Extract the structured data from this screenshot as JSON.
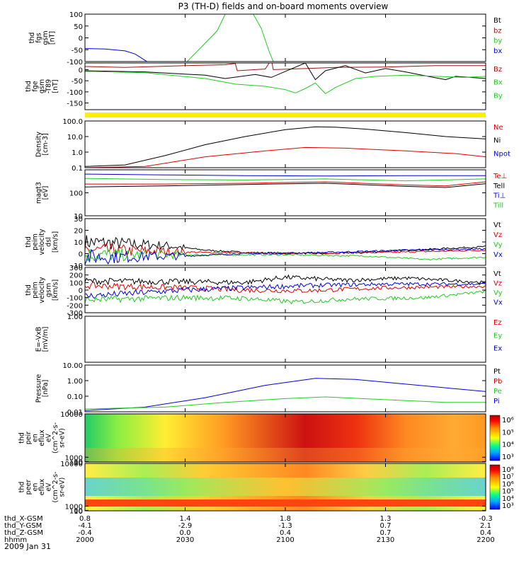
{
  "title": "P3 (TH-D) fields and on-board moments overview",
  "date_label": "2009 Jan 31",
  "colors": {
    "black": "#000000",
    "red": "#e00000",
    "darkred": "#a01010",
    "green": "#22cc22",
    "blue": "#0000dd",
    "yellow": "#ffee00",
    "axis": "#000000"
  },
  "chart_data": [
    {
      "id": "fgs",
      "type": "line",
      "ylabel": [
        "thd",
        "fgs",
        "gsm",
        "[nT]"
      ],
      "ylim": [
        -100,
        100
      ],
      "yticks": [
        "100",
        "50",
        "0",
        "-50",
        "-100"
      ],
      "ytick_values": [
        100,
        50,
        0,
        -50,
        -100
      ],
      "legend": [
        "Bt",
        "bz",
        "by",
        "bx"
      ],
      "series": [
        {
          "color": "blue",
          "points": [
            [
              2000,
              -45
            ],
            [
              2010,
              -47
            ],
            [
              2020,
              -55
            ],
            [
              2025,
              -68
            ],
            [
              2030,
              -95
            ],
            [
              2031,
              -100
            ]
          ]
        },
        {
          "color": "green",
          "points": [
            [
              2051,
              -100
            ],
            [
              2058,
              -40
            ],
            [
              2066,
              30
            ],
            [
              2070,
              100
            ]
          ]
        },
        {
          "color": "green",
          "points": [
            [
              2084,
              100
            ],
            [
              2088,
              40
            ],
            [
              2092,
              -60
            ],
            [
              2094,
              -100
            ]
          ]
        }
      ]
    },
    {
      "id": "fge",
      "type": "line",
      "ylabel": [
        "thd",
        "fge",
        "gsm",
        "-T89",
        "[nT]"
      ],
      "ylim": [
        -180,
        30
      ],
      "yticks": [
        "0",
        "-50",
        "-100",
        "-150"
      ],
      "ytick_values": [
        0,
        -50,
        -100,
        -150
      ],
      "legend": [
        "Bz",
        "Bx",
        "By"
      ],
      "series": [
        {
          "color": "darkred",
          "points": [
            [
              2000,
              14
            ],
            [
              2020,
              10
            ],
            [
              2050,
              18
            ],
            [
              2070,
              22
            ],
            [
              2075,
              28
            ],
            [
              2076,
              -5
            ],
            [
              2090,
              3
            ],
            [
              2093,
              45
            ],
            [
              2094,
              0
            ],
            [
              2110,
              5
            ],
            [
              2125,
              10
            ],
            [
              2150,
              12
            ],
            [
              2175,
              18
            ],
            [
              2200,
              18
            ]
          ]
        },
        {
          "color": "black",
          "points": [
            [
              2000,
              -5
            ],
            [
              2030,
              -10
            ],
            [
              2060,
              -25
            ],
            [
              2070,
              -40
            ],
            [
              2085,
              -22
            ],
            [
              2093,
              -35
            ],
            [
              2100,
              -8
            ],
            [
              2110,
              30
            ],
            [
              2115,
              -45
            ],
            [
              2120,
              -5
            ],
            [
              2130,
              18
            ],
            [
              2140,
              -15
            ],
            [
              2150,
              5
            ],
            [
              2160,
              -10
            ],
            [
              2170,
              -28
            ],
            [
              2180,
              -45
            ],
            [
              2185,
              -30
            ],
            [
              2200,
              -40
            ]
          ]
        },
        {
          "color": "green",
          "points": [
            [
              2000,
              -8
            ],
            [
              2030,
              -14
            ],
            [
              2060,
              -40
            ],
            [
              2075,
              -65
            ],
            [
              2090,
              -75
            ],
            [
              2100,
              -90
            ],
            [
              2105,
              -105
            ],
            [
              2110,
              -85
            ],
            [
              2115,
              -60
            ],
            [
              2120,
              -108
            ],
            [
              2125,
              -80
            ],
            [
              2135,
              -40
            ],
            [
              2145,
              -30
            ],
            [
              2160,
              -25
            ],
            [
              2175,
              -30
            ],
            [
              2190,
              -35
            ],
            [
              2200,
              -30
            ]
          ]
        }
      ]
    },
    {
      "id": "flag",
      "type": "band",
      "color": "yellow"
    },
    {
      "id": "density",
      "type": "line",
      "ylog": true,
      "ylabel": [
        "Density",
        "[cm-3]"
      ],
      "ylim": [
        0.1,
        100
      ],
      "yticks": [
        "100.0",
        "10.0",
        "1.0",
        "0.1"
      ],
      "ytick_values": [
        100,
        10,
        1,
        0.1
      ],
      "legend": [
        "Ne",
        "Ni",
        "Npot"
      ],
      "series": [
        {
          "color": "black",
          "points": [
            [
              2000,
              0.12
            ],
            [
              2020,
              0.15
            ],
            [
              2040,
              0.6
            ],
            [
              2060,
              3.0
            ],
            [
              2080,
              10
            ],
            [
              2100,
              28
            ],
            [
              2115,
              42
            ],
            [
              2125,
              40
            ],
            [
              2140,
              30
            ],
            [
              2160,
              18
            ],
            [
              2180,
              10
            ],
            [
              2200,
              7
            ]
          ]
        },
        {
          "color": "red",
          "points": [
            [
              2000,
              0.1
            ],
            [
              2030,
              0.12
            ],
            [
              2060,
              0.5
            ],
            [
              2090,
              1.2
            ],
            [
              2110,
              2.0
            ],
            [
              2130,
              1.8
            ],
            [
              2160,
              1.2
            ],
            [
              2185,
              0.8
            ],
            [
              2200,
              0.5
            ]
          ]
        }
      ]
    },
    {
      "id": "temp",
      "type": "line",
      "ylog": true,
      "ylabel": [
        "magt3",
        "[eV]"
      ],
      "ylim": [
        10,
        1000
      ],
      "yticks": [
        "100",
        "10"
      ],
      "ytick_values": [
        100,
        10
      ],
      "legend": [
        "Te⊥",
        "Tell",
        "Ti⊥",
        "Till"
      ],
      "series": [
        {
          "color": "blue",
          "points": [
            [
              2000,
              650
            ],
            [
              2040,
              600
            ],
            [
              2080,
              560
            ],
            [
              2120,
              540
            ],
            [
              2160,
              560
            ],
            [
              2200,
              560
            ]
          ]
        },
        {
          "color": "green",
          "points": [
            [
              2000,
              420
            ],
            [
              2040,
              380
            ],
            [
              2080,
              360
            ],
            [
              2120,
              400
            ],
            [
              2160,
              330
            ],
            [
              2200,
              400
            ]
          ]
        },
        {
          "color": "red",
          "points": [
            [
              2000,
              240
            ],
            [
              2040,
              240
            ],
            [
              2080,
              260
            ],
            [
              2120,
              300
            ],
            [
              2160,
              220
            ],
            [
              2180,
              200
            ],
            [
              2200,
              300
            ]
          ]
        },
        {
          "color": "black",
          "points": [
            [
              2000,
              180
            ],
            [
              2040,
              200
            ],
            [
              2080,
              230
            ],
            [
              2120,
              260
            ],
            [
              2160,
              190
            ],
            [
              2180,
              170
            ],
            [
              2200,
              250
            ]
          ]
        }
      ]
    },
    {
      "id": "peim",
      "type": "line",
      "ylabel": [
        "thd",
        "peim",
        "velocity",
        "dsl",
        "[km/s]"
      ],
      "ylim": [
        -10,
        30
      ],
      "yticks": [
        "30",
        "20",
        "10",
        "0",
        "-10"
      ],
      "ytick_values": [
        30,
        20,
        10,
        0,
        -10
      ],
      "legend": [
        "Vt",
        "Vz",
        "Vy",
        "Vx"
      ],
      "noise": {
        "x_end": 2050,
        "amp": 7
      },
      "series": [
        {
          "color": "black",
          "points": [
            [
              2000,
              10
            ],
            [
              2040,
              7
            ],
            [
              2060,
              3
            ],
            [
              2080,
              1
            ],
            [
              2120,
              0
            ],
            [
              2150,
              2
            ],
            [
              2175,
              4
            ],
            [
              2200,
              6
            ]
          ]
        },
        {
          "color": "red",
          "points": [
            [
              2000,
              3
            ],
            [
              2040,
              2
            ],
            [
              2060,
              1
            ],
            [
              2100,
              0
            ],
            [
              2150,
              1
            ],
            [
              2200,
              3
            ]
          ]
        },
        {
          "color": "green",
          "points": [
            [
              2000,
              -1
            ],
            [
              2060,
              -1
            ],
            [
              2100,
              -1
            ],
            [
              2140,
              -2
            ],
            [
              2170,
              -5
            ],
            [
              2200,
              -3
            ]
          ]
        },
        {
          "color": "blue",
          "points": [
            [
              2000,
              -3
            ],
            [
              2050,
              -2
            ],
            [
              2080,
              0
            ],
            [
              2120,
              1
            ],
            [
              2160,
              3
            ],
            [
              2200,
              4
            ]
          ]
        }
      ]
    },
    {
      "id": "peimgsm",
      "type": "line",
      "ylabel": [
        "thd",
        "peim",
        "velocity",
        "gsm",
        "[km/s]"
      ],
      "ylim": [
        -300,
        300
      ],
      "yticks": [
        "300",
        "200",
        "100",
        "0",
        "-100",
        "-200",
        "-300"
      ],
      "ytick_values": [
        300,
        200,
        100,
        0,
        -100,
        -200,
        -300
      ],
      "legend": [
        "Vt",
        "Vz",
        "Vy",
        "Vx"
      ],
      "noise": {
        "x_end": 2200,
        "amp": 45
      },
      "series": [
        {
          "color": "black",
          "points": [
            [
              2000,
              120
            ],
            [
              2050,
              110
            ],
            [
              2080,
              100
            ],
            [
              2100,
              170
            ],
            [
              2130,
              130
            ],
            [
              2160,
              160
            ],
            [
              2200,
              100
            ]
          ]
        },
        {
          "color": "red",
          "points": [
            [
              2000,
              60
            ],
            [
              2050,
              30
            ],
            [
              2080,
              0
            ],
            [
              2110,
              -10
            ],
            [
              2150,
              30
            ],
            [
              2200,
              50
            ]
          ]
        },
        {
          "color": "blue",
          "points": [
            [
              2000,
              -80
            ],
            [
              2050,
              0
            ],
            [
              2080,
              30
            ],
            [
              2110,
              60
            ],
            [
              2150,
              80
            ],
            [
              2200,
              80
            ]
          ]
        },
        {
          "color": "green",
          "points": [
            [
              2000,
              -130
            ],
            [
              2050,
              -100
            ],
            [
              2080,
              -110
            ],
            [
              2105,
              -160
            ],
            [
              2130,
              -120
            ],
            [
              2170,
              -100
            ],
            [
              2200,
              -20
            ]
          ]
        }
      ]
    },
    {
      "id": "efield",
      "type": "line",
      "ylabel": [
        "E=-VxB",
        "[mV/m]"
      ],
      "ylim": [
        0,
        1
      ],
      "yticks": [
        "1.00"
      ],
      "ytick_values": [
        1
      ],
      "legend": [
        "Ez",
        "Ey",
        "Ex"
      ],
      "series": []
    },
    {
      "id": "pressure",
      "type": "line",
      "ylog": true,
      "ylabel": [
        "Pressure",
        "[nPa]"
      ],
      "ylim": [
        0.01,
        10
      ],
      "yticks": [
        "10.00",
        "1.00",
        "0.10",
        "0.01"
      ],
      "ytick_values": [
        10,
        1,
        0.1,
        0.01
      ],
      "legend": [
        "Pt",
        "Pb",
        "Pe",
        "Pi"
      ],
      "series": [
        {
          "color": "blue",
          "points": [
            [
              2000,
              0.012
            ],
            [
              2030,
              0.02
            ],
            [
              2060,
              0.08
            ],
            [
              2090,
              0.5
            ],
            [
              2115,
              1.4
            ],
            [
              2135,
              1.2
            ],
            [
              2160,
              0.6
            ],
            [
              2185,
              0.3
            ],
            [
              2200,
              0.2
            ]
          ]
        },
        {
          "color": "green",
          "points": [
            [
              2000,
              0.015
            ],
            [
              2040,
              0.02
            ],
            [
              2070,
              0.04
            ],
            [
              2100,
              0.07
            ],
            [
              2120,
              0.09
            ],
            [
              2150,
              0.06
            ],
            [
              2180,
              0.04
            ],
            [
              2200,
              0.04
            ]
          ]
        }
      ]
    },
    {
      "id": "peir",
      "type": "heatmap",
      "ylabel": [
        "thd",
        "peir",
        "en",
        "eflux",
        "eV",
        "(cm^2-s-",
        "sr-eV)"
      ],
      "ylim": [
        10,
        10000
      ],
      "yticks": [
        "10000",
        "1000",
        "100",
        "10"
      ],
      "ytick_values": [
        10000,
        1000,
        100,
        10
      ],
      "colorbar_ticks": [
        "10⁶",
        "10⁵",
        "10⁴",
        "10³"
      ]
    },
    {
      "id": "peer",
      "type": "heatmap",
      "ylabel": [
        "thd",
        "peer",
        "en",
        "eflux",
        "eV",
        "(cm^2-s-",
        "sr-eV)"
      ],
      "ylim": [
        10,
        10000
      ],
      "yticks": [
        "10000",
        "1000",
        "100",
        "10"
      ],
      "ytick_values": [
        10000,
        1000,
        100,
        10
      ],
      "colorbar_ticks": [
        "10⁸",
        "10⁷",
        "10⁶",
        "10⁵",
        "10⁴",
        "10³"
      ]
    }
  ],
  "x_axis": {
    "x_range": [
      2000,
      2200
    ],
    "row_labels": [
      "thd_X-GSM",
      "thd_Y-GSM",
      "thd_Z-GSM",
      "hhmm"
    ],
    "ticks": [
      {
        "x": 2000,
        "values": [
          "0.8",
          "-4.1",
          "-0.4",
          "2000"
        ]
      },
      {
        "x": 2050,
        "values": [
          "1.4",
          "-2.9",
          "0.0",
          "2030"
        ]
      },
      {
        "x": 2100,
        "values": [
          "1.8",
          "-1.3",
          "0.4",
          "2100"
        ]
      },
      {
        "x": 2150,
        "values": [
          "1.3",
          "0.7",
          "0.7",
          "2130"
        ]
      },
      {
        "x": 2200,
        "values": [
          "-0.3",
          "2.1",
          "0.4",
          "2200"
        ]
      }
    ]
  }
}
